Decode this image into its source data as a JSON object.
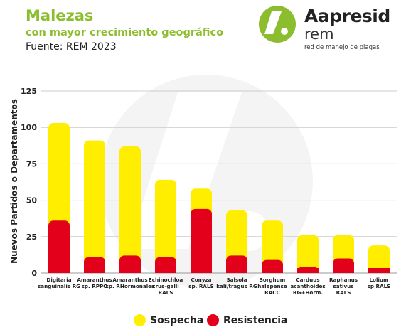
{
  "header": {
    "title": "Malezas",
    "subtitle": "con mayor crecimiento geográfico",
    "source": "Fuente: REM 2023"
  },
  "logo": {
    "brand": "Aapresid",
    "brand2": "rem",
    "tagline": "red de manejo de plagas"
  },
  "colors": {
    "sospecha": "#ffee00",
    "resistencia": "#e2001a",
    "accent": "#8cbd2e",
    "grid": "#cccccc"
  },
  "chart_data": {
    "type": "bar",
    "stacked": true,
    "ylabel": "Nuevos Partidos o Departamentos",
    "ylim": [
      0,
      125
    ],
    "yticks": [
      0,
      25,
      50,
      75,
      100,
      125
    ],
    "grid": true,
    "legend_position": "bottom",
    "categories": [
      [
        "Digitaria",
        "sanguinalis RG"
      ],
      [
        "Amaranthus",
        "sp. RPPO"
      ],
      [
        "Amaranthus",
        "sp. RHormonales"
      ],
      [
        "Echinochloa",
        "crus-galli",
        "RALS"
      ],
      [
        "Conyza",
        "sp. RALS"
      ],
      [
        "Salsola",
        "kali/tragus RG"
      ],
      [
        "Sorghum",
        "halepense",
        "RACC"
      ],
      [
        "Carduus",
        "acanthoides",
        "RG+Horm."
      ],
      [
        "Raphanus",
        "sativus",
        "RALS"
      ],
      [
        "Lolium",
        "sp RALS"
      ]
    ],
    "series": [
      {
        "name": "Resistencia",
        "values": [
          36,
          11,
          12,
          11,
          44,
          12,
          9,
          4,
          10,
          3
        ]
      },
      {
        "name": "Sospecha",
        "values": [
          67,
          80,
          75,
          53,
          14,
          31,
          27,
          22,
          16,
          16
        ]
      }
    ]
  },
  "legend": {
    "sospecha": "Sospecha",
    "resistencia": "Resistencia"
  }
}
